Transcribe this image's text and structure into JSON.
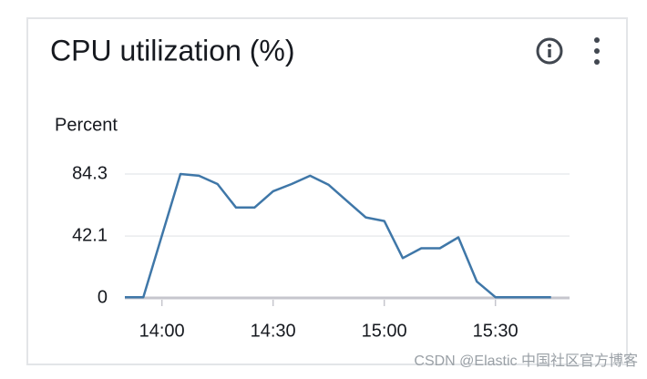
{
  "chart_data": {
    "type": "line",
    "title": "CPU utilization (%)",
    "y_label": "Percent",
    "x": [
      "13:50",
      "13:55",
      "14:05",
      "14:10",
      "14:15",
      "14:20",
      "14:25",
      "14:30",
      "14:35",
      "14:40",
      "14:45",
      "14:50",
      "14:55",
      "15:00",
      "15:05",
      "15:10",
      "15:15",
      "15:20",
      "15:25",
      "15:30",
      "15:35",
      "15:40",
      "15:45"
    ],
    "values": [
      0.5,
      0.5,
      84.3,
      83.1,
      77.5,
      61.5,
      61.5,
      72.6,
      77.5,
      83.1,
      76.9,
      65.8,
      54.8,
      52.3,
      27.1,
      33.8,
      33.8,
      41.2,
      11.1,
      0.5,
      0.5,
      0.5,
      0.5
    ],
    "color": "#3f77a8",
    "xlim": [
      "13:50",
      "15:50"
    ],
    "xticks": [
      "14:00",
      "14:30",
      "15:00",
      "15:30"
    ],
    "ylim": [
      0,
      84.3
    ],
    "yticks": [
      0,
      42.1,
      84.3
    ],
    "grid": true
  },
  "watermark": "CSDN @Elastic 中国社区官方博客"
}
